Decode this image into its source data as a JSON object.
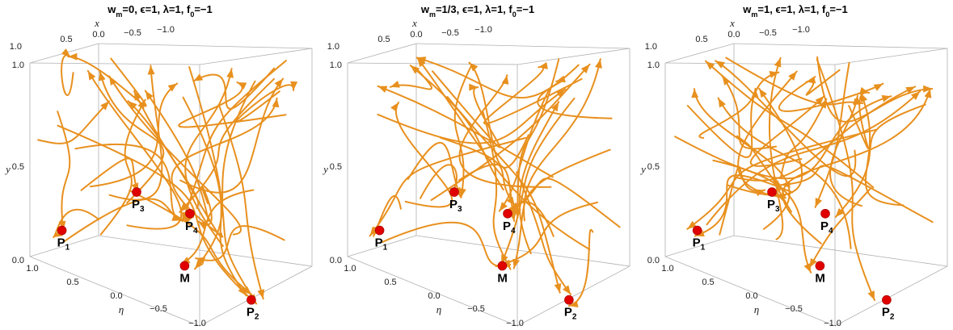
{
  "chart_data": [
    {
      "type": "stream-3d",
      "title_parts": [
        {
          "t": "w",
          "sub": "m"
        },
        {
          "t": "=0, ϵ=1, λ=1, f"
        },
        {
          "t": "",
          "sub": "0"
        },
        {
          "t": "=−1"
        }
      ],
      "xlabel": "x",
      "ylabel": "y",
      "zlabel": "η",
      "x_ticks": [
        "0.5",
        "0.0",
        "−0.5",
        "−1.0"
      ],
      "y_ticks": [
        "0.0",
        "0.5",
        "1.0"
      ],
      "y_top_tick": "1.0",
      "eta_ticks": [
        "1.0",
        "0.5",
        "0.0",
        "−0.5",
        "−1.0"
      ],
      "points": [
        {
          "name": "P",
          "sub": "1",
          "u": 0.12,
          "v": 0.18
        },
        {
          "name": "P",
          "sub": "2",
          "u": 0.83,
          "v": 0.06
        },
        {
          "name": "P",
          "sub": "3",
          "u": 0.4,
          "v": 0.44
        },
        {
          "name": "P",
          "sub": "4",
          "u": 0.6,
          "v": 0.38
        },
        {
          "name": "M",
          "sub": "",
          "u": 0.58,
          "v": 0.14
        }
      ]
    },
    {
      "type": "stream-3d",
      "title_parts": [
        {
          "t": "w",
          "sub": "m"
        },
        {
          "t": "=1/3, ϵ=1, λ=1, f"
        },
        {
          "t": "",
          "sub": "0"
        },
        {
          "t": "=−1"
        }
      ],
      "xlabel": "x",
      "ylabel": "y",
      "zlabel": "η",
      "x_ticks": [
        "0.5",
        "0.0",
        "−0.5",
        "−1.0"
      ],
      "y_ticks": [
        "0.0",
        "0.5",
        "1.0"
      ],
      "y_top_tick": "1.0",
      "eta_ticks": [
        "1.0",
        "0.5",
        "0.0",
        "−0.5",
        "−1.0"
      ],
      "points": [
        {
          "name": "P",
          "sub": "1",
          "u": 0.12,
          "v": 0.18
        },
        {
          "name": "P",
          "sub": "2",
          "u": 0.83,
          "v": 0.06
        },
        {
          "name": "P",
          "sub": "3",
          "u": 0.4,
          "v": 0.44
        },
        {
          "name": "P",
          "sub": "4",
          "u": 0.6,
          "v": 0.38
        },
        {
          "name": "M",
          "sub": "",
          "u": 0.58,
          "v": 0.14
        }
      ]
    },
    {
      "type": "stream-3d",
      "title_parts": [
        {
          "t": "w",
          "sub": "m"
        },
        {
          "t": "=1, ϵ=1, λ=1, f"
        },
        {
          "t": "",
          "sub": "0"
        },
        {
          "t": "=−1"
        }
      ],
      "xlabel": "x",
      "ylabel": "y",
      "zlabel": "η",
      "x_ticks": [
        "0.5",
        "0.0",
        "−0.5",
        "−1.0"
      ],
      "y_ticks": [
        "0.0",
        "0.5",
        "1.0"
      ],
      "y_top_tick": "1.0",
      "eta_ticks": [
        "1.0",
        "0.5",
        "0.0",
        "−0.5",
        "−1.0"
      ],
      "points": [
        {
          "name": "P",
          "sub": "1",
          "u": 0.12,
          "v": 0.18
        },
        {
          "name": "P",
          "sub": "2",
          "u": 0.83,
          "v": 0.06
        },
        {
          "name": "P",
          "sub": "3",
          "u": 0.4,
          "v": 0.44
        },
        {
          "name": "P",
          "sub": "4",
          "u": 0.6,
          "v": 0.38
        },
        {
          "name": "M",
          "sub": "",
          "u": 0.58,
          "v": 0.14
        }
      ]
    }
  ],
  "colors": {
    "stream": "#e8901e",
    "point": "#e00000",
    "box": "#b0b0b0"
  }
}
